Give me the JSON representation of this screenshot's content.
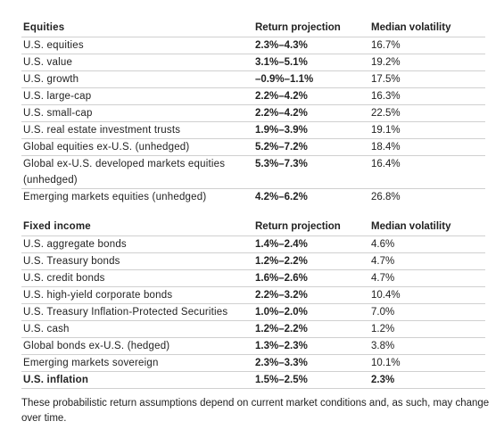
{
  "equities": {
    "header": {
      "label": "Equities",
      "return": "Return projection",
      "volatility": "Median volatility"
    },
    "rows": [
      {
        "name": "U.S. equities",
        "ret": "2.3%–4.3%",
        "vol": "16.7%"
      },
      {
        "name": "U.S. value",
        "ret": "3.1%–5.1%",
        "vol": "19.2%"
      },
      {
        "name": "U.S. growth",
        "ret": "–0.9%–1.1%",
        "vol": "17.5%"
      },
      {
        "name": "U.S. large-cap",
        "ret": "2.2%–4.2%",
        "vol": "16.3%"
      },
      {
        "name": "U.S. small-cap",
        "ret": "2.2%–4.2%",
        "vol": "22.5%"
      },
      {
        "name": "U.S. real estate investment trusts",
        "ret": "1.9%–3.9%",
        "vol": "19.1%"
      },
      {
        "name": "Global equities ex-U.S. (unhedged)",
        "ret": "5.2%–7.2%",
        "vol": "18.4%"
      },
      {
        "name": "Global ex-U.S. developed markets equities (unhedged)",
        "ret": "5.3%–7.3%",
        "vol": "16.4%"
      },
      {
        "name": "Emerging markets equities (unhedged)",
        "ret": "4.2%–6.2%",
        "vol": "26.8%"
      }
    ]
  },
  "fixed_income": {
    "header": {
      "label": "Fixed income",
      "return": "Return projection",
      "volatility": "Median volatility"
    },
    "rows": [
      {
        "name": "U.S. aggregate bonds",
        "ret": "1.4%–2.4%",
        "vol": "4.6%"
      },
      {
        "name": "U.S. Treasury bonds",
        "ret": "1.2%–2.2%",
        "vol": "4.7%"
      },
      {
        "name": "U.S. credit bonds",
        "ret": "1.6%–2.6%",
        "vol": "4.7%"
      },
      {
        "name": "U.S. high-yield corporate bonds",
        "ret": "2.2%–3.2%",
        "vol": "10.4%"
      },
      {
        "name": "U.S. Treasury Inflation-Protected Securities",
        "ret": "1.0%–2.0%",
        "vol": "7.0%"
      },
      {
        "name": "U.S. cash",
        "ret": "1.2%–2.2%",
        "vol": "1.2%"
      },
      {
        "name": "Global bonds ex-U.S. (hedged)",
        "ret": "1.3%–2.3%",
        "vol": "3.8%"
      },
      {
        "name": "Emerging markets sovereign",
        "ret": "2.3%–3.3%",
        "vol": "10.1%"
      },
      {
        "name": "U.S. inflation",
        "ret": "1.5%–2.5%",
        "vol": "2.3%"
      }
    ]
  },
  "footnote": "These probabilistic return assumptions depend on current market conditions and, as such, may change over time."
}
